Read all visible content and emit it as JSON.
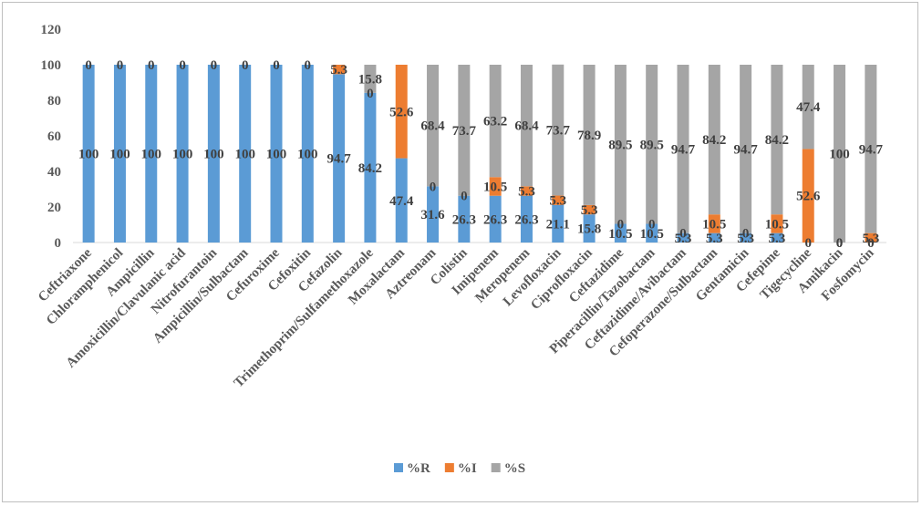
{
  "chart_data": {
    "type": "bar",
    "stacked": true,
    "title": "",
    "xlabel": "",
    "ylabel": "",
    "ylim": [
      0,
      120
    ],
    "yticks": [
      0,
      20,
      40,
      60,
      80,
      100,
      120
    ],
    "grid": false,
    "legend_position": "bottom",
    "categories": [
      "Ceftriaxone",
      "Chloramphenicol",
      "Ampicillin",
      "Amoxicillin/Clavulanic acid",
      "Nitrofurantoin",
      "Ampicillin/Sulbactam",
      "Cefuroxime",
      "Cefoxitin",
      "Cefazolin",
      "Trimethoprim/Sulfamethoxazole",
      "Moxalactam",
      "Aztreonam",
      "Colistin",
      "Imipenem",
      "Meropenem",
      "Levofloxacin",
      "Ciprofloxacin",
      "Ceftazidime",
      "Piperacillin/Tazobactam",
      "Ceftazidime/Avibactam",
      "Cefoperazone/Sulbactam",
      "Gentamicin",
      "Cefepime",
      "Tigecycline",
      "Amikacin",
      "Fosfomycin"
    ],
    "series": [
      {
        "name": "%R",
        "color": "#5b9bd5",
        "values": [
          100,
          100,
          100,
          100,
          100,
          100,
          100,
          100,
          94.7,
          84.2,
          47.4,
          31.6,
          26.3,
          26.3,
          26.3,
          21.1,
          15.8,
          10.5,
          10.5,
          5.3,
          5.3,
          5.3,
          5.3,
          0,
          0,
          0
        ]
      },
      {
        "name": "%I",
        "color": "#ed7d31",
        "values": [
          0,
          0,
          0,
          0,
          0,
          0,
          0,
          0,
          5.3,
          0,
          52.6,
          0,
          0,
          10.5,
          5.3,
          5.3,
          5.3,
          0,
          0,
          0,
          10.5,
          0,
          10.5,
          52.6,
          0,
          5.3
        ]
      },
      {
        "name": "%S",
        "color": "#a5a5a5",
        "values": [
          null,
          null,
          null,
          null,
          null,
          null,
          null,
          null,
          null,
          15.8,
          null,
          68.4,
          73.7,
          63.2,
          68.4,
          73.7,
          78.9,
          89.5,
          89.5,
          94.7,
          84.2,
          94.7,
          84.2,
          47.4,
          100,
          94.7
        ]
      }
    ]
  }
}
